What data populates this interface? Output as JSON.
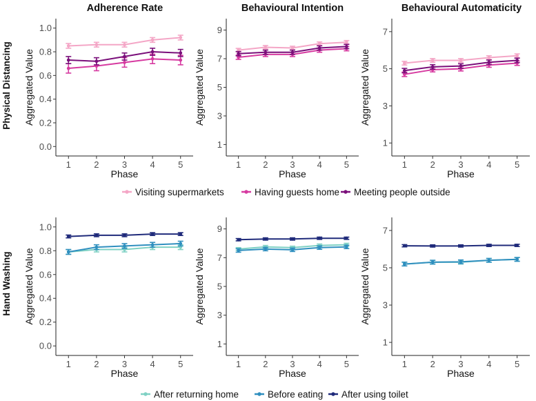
{
  "figure": {
    "column_titles": [
      "Adherence Rate",
      "Behavioural Intention",
      "Behavioural Automaticity"
    ],
    "row_titles": [
      "Physical Distancing",
      "Hand Washing"
    ],
    "xlabel": "Phase",
    "ylabel": "Aggregated Value"
  },
  "legends": [
    {
      "items": [
        {
          "label": "Visiting supermarkets",
          "color": "#f4a6c6"
        },
        {
          "label": "Having guests home",
          "color": "#d63aa0"
        },
        {
          "label": "Meeting people outside",
          "color": "#7a0f7a"
        }
      ]
    },
    {
      "items": [
        {
          "label": "After returning home",
          "color": "#7fd1c4"
        },
        {
          "label": "Before eating",
          "color": "#2f8fbf"
        },
        {
          "label": "After using toilet",
          "color": "#1f2a7a"
        }
      ]
    }
  ],
  "chart_data": [
    {
      "type": "line",
      "panel": "physical-adherence",
      "row": 0,
      "col": 0,
      "title": "Adherence Rate",
      "xlabel": "Phase",
      "ylabel": "Aggregated Value",
      "x": [
        1,
        2,
        3,
        4,
        5
      ],
      "xlim": [
        0.55,
        5.45
      ],
      "ylim": [
        -0.08,
        1.08
      ],
      "yticks": [
        0.0,
        0.2,
        0.4,
        0.6,
        0.8,
        1.0
      ],
      "ytick_labels": [
        "0.0",
        "0.2",
        "0.4",
        "0.6",
        "0.8",
        "1.0"
      ],
      "series": [
        {
          "name": "Visiting supermarkets",
          "color": "#f4a6c6",
          "values": [
            0.85,
            0.86,
            0.86,
            0.9,
            0.92
          ],
          "err": [
            0.02,
            0.02,
            0.02,
            0.02,
            0.02
          ]
        },
        {
          "name": "Having guests home",
          "color": "#d63aa0",
          "values": [
            0.66,
            0.68,
            0.71,
            0.74,
            0.73
          ],
          "err": [
            0.04,
            0.04,
            0.04,
            0.04,
            0.04
          ]
        },
        {
          "name": "Meeting people outside",
          "color": "#7a0f7a",
          "values": [
            0.73,
            0.72,
            0.76,
            0.8,
            0.79
          ],
          "err": [
            0.03,
            0.03,
            0.03,
            0.03,
            0.03
          ]
        }
      ]
    },
    {
      "type": "line",
      "panel": "physical-intention",
      "row": 0,
      "col": 1,
      "title": "Behavioural Intention",
      "xlabel": "Phase",
      "ylabel": "Aggregated Value",
      "x": [
        1,
        2,
        3,
        4,
        5
      ],
      "xlim": [
        0.55,
        5.45
      ],
      "ylim": [
        0.2,
        9.8
      ],
      "yticks": [
        1,
        3,
        5,
        7,
        9
      ],
      "ytick_labels": [
        "1",
        "3",
        "5",
        "7",
        "9"
      ],
      "series": [
        {
          "name": "Visiting supermarkets",
          "color": "#f4a6c6",
          "values": [
            7.6,
            7.8,
            7.75,
            8.05,
            8.15
          ],
          "err": [
            0.12,
            0.12,
            0.12,
            0.12,
            0.12
          ]
        },
        {
          "name": "Having guests home",
          "color": "#d63aa0",
          "values": [
            7.1,
            7.3,
            7.3,
            7.6,
            7.7
          ],
          "err": [
            0.15,
            0.15,
            0.15,
            0.15,
            0.15
          ]
        },
        {
          "name": "Meeting people outside",
          "color": "#7a0f7a",
          "values": [
            7.35,
            7.45,
            7.45,
            7.75,
            7.85
          ],
          "err": [
            0.15,
            0.15,
            0.15,
            0.15,
            0.15
          ]
        }
      ]
    },
    {
      "type": "line",
      "panel": "physical-automaticity",
      "row": 0,
      "col": 2,
      "title": "Behavioural Automaticity",
      "xlabel": "Phase",
      "ylabel": "Aggregated Value",
      "x": [
        1,
        2,
        3,
        4,
        5
      ],
      "xlim": [
        0.55,
        5.45
      ],
      "ylim": [
        0.3,
        7.7
      ],
      "yticks": [
        1,
        3,
        5,
        7
      ],
      "ytick_labels": [
        "1",
        "3",
        "5",
        "7"
      ],
      "series": [
        {
          "name": "Visiting supermarkets",
          "color": "#f4a6c6",
          "values": [
            5.3,
            5.45,
            5.45,
            5.6,
            5.7
          ],
          "err": [
            0.1,
            0.1,
            0.1,
            0.1,
            0.1
          ]
        },
        {
          "name": "Having guests home",
          "color": "#d63aa0",
          "values": [
            4.7,
            4.95,
            5.0,
            5.2,
            5.3
          ],
          "err": [
            0.12,
            0.12,
            0.12,
            0.12,
            0.12
          ]
        },
        {
          "name": "Meeting people outside",
          "color": "#7a0f7a",
          "values": [
            4.9,
            5.1,
            5.15,
            5.35,
            5.45
          ],
          "err": [
            0.12,
            0.12,
            0.12,
            0.12,
            0.12
          ]
        }
      ]
    },
    {
      "type": "line",
      "panel": "handwashing-adherence",
      "row": 1,
      "col": 0,
      "title": "",
      "xlabel": "Phase",
      "ylabel": "Aggregated Value",
      "x": [
        1,
        2,
        3,
        4,
        5
      ],
      "xlim": [
        0.55,
        5.45
      ],
      "ylim": [
        -0.08,
        1.08
      ],
      "yticks": [
        0.0,
        0.2,
        0.4,
        0.6,
        0.8,
        1.0
      ],
      "ytick_labels": [
        "0.0",
        "0.2",
        "0.4",
        "0.6",
        "0.8",
        "1.0"
      ],
      "series": [
        {
          "name": "After returning home",
          "color": "#7fd1c4",
          "values": [
            0.79,
            0.81,
            0.81,
            0.83,
            0.83
          ],
          "err": [
            0.02,
            0.02,
            0.02,
            0.02,
            0.02
          ]
        },
        {
          "name": "Before eating",
          "color": "#2f8fbf",
          "values": [
            0.79,
            0.83,
            0.84,
            0.85,
            0.86
          ],
          "err": [
            0.02,
            0.02,
            0.02,
            0.02,
            0.02
          ]
        },
        {
          "name": "After using toilet",
          "color": "#1f2a7a",
          "values": [
            0.92,
            0.93,
            0.93,
            0.94,
            0.94
          ],
          "err": [
            0.012,
            0.012,
            0.012,
            0.012,
            0.012
          ]
        }
      ]
    },
    {
      "type": "line",
      "panel": "handwashing-intention",
      "row": 1,
      "col": 1,
      "title": "",
      "xlabel": "Phase",
      "ylabel": "Aggregated Value",
      "x": [
        1,
        2,
        3,
        4,
        5
      ],
      "xlim": [
        0.55,
        5.45
      ],
      "ylim": [
        0.2,
        9.8
      ],
      "yticks": [
        1,
        3,
        5,
        7,
        9
      ],
      "ytick_labels": [
        "1",
        "3",
        "5",
        "7",
        "9"
      ],
      "series": [
        {
          "name": "After returning home",
          "color": "#7fd1c4",
          "values": [
            7.6,
            7.75,
            7.7,
            7.85,
            7.9
          ],
          "err": [
            0.1,
            0.1,
            0.1,
            0.1,
            0.1
          ]
        },
        {
          "name": "Before eating",
          "color": "#2f8fbf",
          "values": [
            7.5,
            7.6,
            7.55,
            7.7,
            7.75
          ],
          "err": [
            0.12,
            0.12,
            0.12,
            0.12,
            0.12
          ]
        },
        {
          "name": "After using toilet",
          "color": "#1f2a7a",
          "values": [
            8.25,
            8.3,
            8.3,
            8.35,
            8.35
          ],
          "err": [
            0.08,
            0.08,
            0.08,
            0.08,
            0.08
          ]
        }
      ]
    },
    {
      "type": "line",
      "panel": "handwashing-automaticity",
      "row": 1,
      "col": 2,
      "title": "",
      "xlabel": "Phase",
      "ylabel": "Aggregated Value",
      "x": [
        1,
        2,
        3,
        4,
        5
      ],
      "xlim": [
        0.55,
        5.45
      ],
      "ylim": [
        0.3,
        7.7
      ],
      "yticks": [
        1,
        3,
        5,
        7
      ],
      "ytick_labels": [
        "1",
        "3",
        "5",
        "7"
      ],
      "series": [
        {
          "name": "After returning home",
          "color": "#7fd1c4",
          "values": [
            5.2,
            5.3,
            5.3,
            5.4,
            5.45
          ],
          "err": [
            0.1,
            0.1,
            0.1,
            0.1,
            0.1
          ]
        },
        {
          "name": "Before eating",
          "color": "#2f8fbf",
          "values": [
            5.2,
            5.3,
            5.32,
            5.4,
            5.45
          ],
          "err": [
            0.1,
            0.1,
            0.1,
            0.1,
            0.1
          ]
        },
        {
          "name": "After using toilet",
          "color": "#1f2a7a",
          "values": [
            6.18,
            6.17,
            6.17,
            6.2,
            6.2
          ],
          "err": [
            0.06,
            0.06,
            0.06,
            0.06,
            0.06
          ]
        }
      ]
    }
  ]
}
